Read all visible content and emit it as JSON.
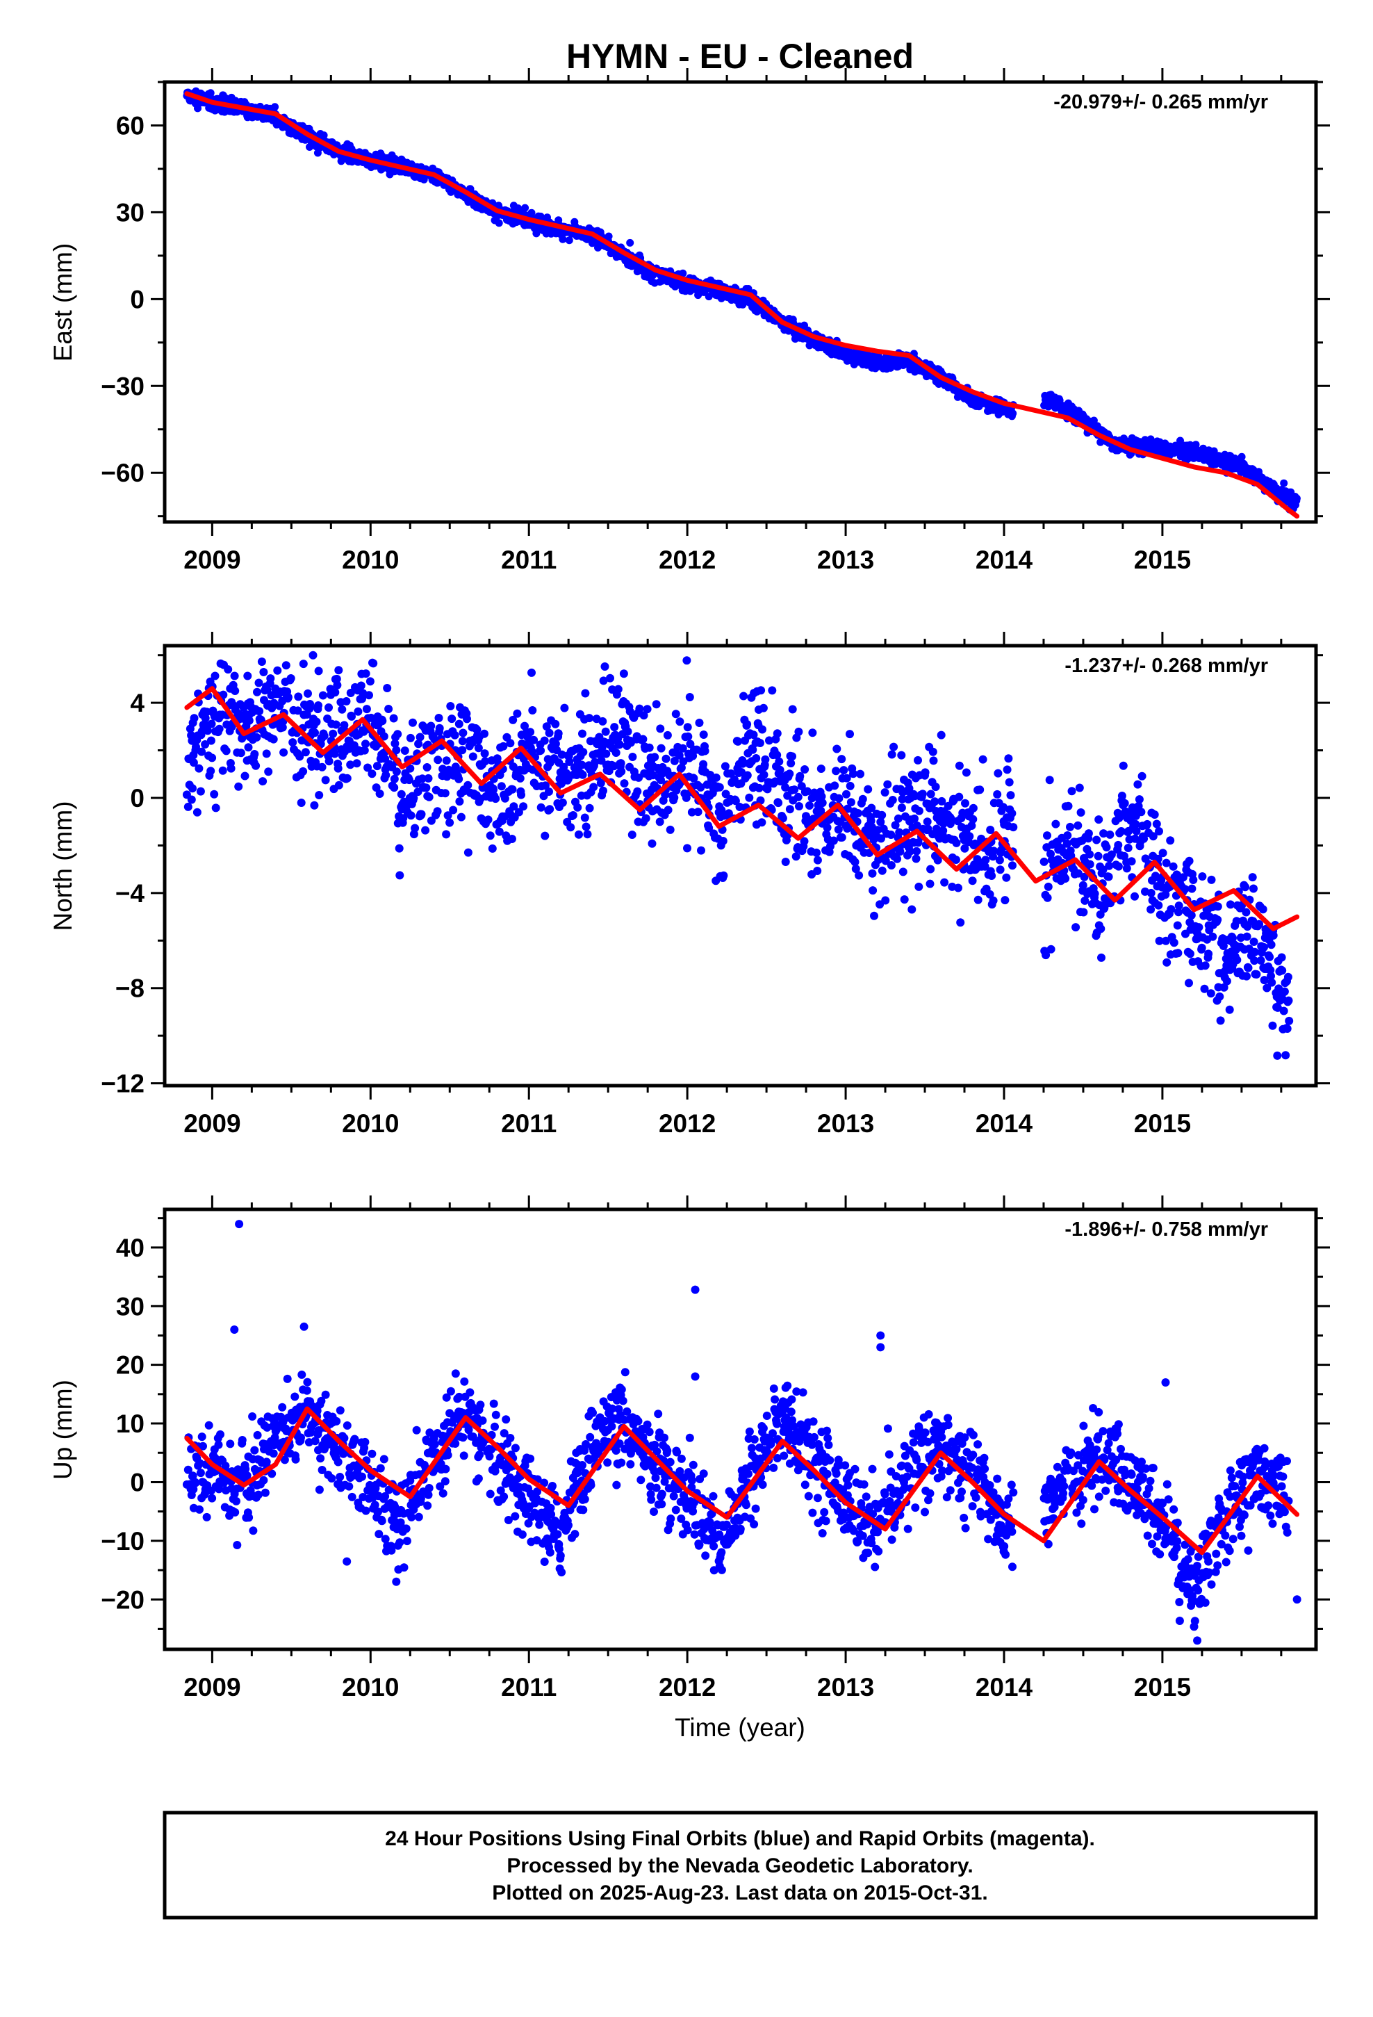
{
  "title": "HYMN  - EU - Cleaned",
  "xlabel": "Time (year)",
  "footer": {
    "line1": "24 Hour Positions Using Final Orbits (blue) and Rapid Orbits (magenta).",
    "line2": "Processed by the Nevada Geodetic Laboratory.",
    "line3": "Plotted on 2025-Aug-23. Last data on 2015-Oct-31."
  },
  "colors": {
    "points": "#0000ff",
    "fit": "#ff0000",
    "frame": "#000000"
  },
  "chart_data": [
    {
      "type": "scatter",
      "ylabel": "East (mm)",
      "rate_label": "-20.979+/- 0.265 mm/yr",
      "xlim": [
        2008.7,
        2015.97
      ],
      "ylim": [
        -77,
        75
      ],
      "xticks": [
        "2009",
        "2010",
        "2011",
        "2012",
        "2013",
        "2014",
        "2015"
      ],
      "yticks": [
        "60",
        "30",
        "0",
        "−30",
        "−60"
      ],
      "ytick_values": [
        60,
        30,
        0,
        -30,
        -60
      ],
      "series": [
        {
          "role": "observations",
          "x": [
            2008.84,
            2009.0,
            2009.2,
            2009.4,
            2009.6,
            2009.8,
            2010.0,
            2010.2,
            2010.4,
            2010.6,
            2010.8,
            2011.0,
            2011.2,
            2011.4,
            2011.6,
            2011.8,
            2012.0,
            2012.2,
            2012.4,
            2012.6,
            2012.8,
            2013.0,
            2013.2,
            2013.4,
            2013.6,
            2013.8,
            2014.0,
            2014.1,
            2014.3,
            2014.5,
            2014.7,
            2014.9,
            2015.1,
            2015.3,
            2015.5,
            2015.7,
            2015.85
          ],
          "y": [
            70,
            68,
            66,
            63,
            56,
            51,
            48,
            46,
            43,
            36,
            30,
            27,
            24,
            22,
            15,
            9,
            5,
            3,
            0,
            -8,
            -14,
            -19,
            -22,
            -21,
            -27,
            -35,
            -38,
            -40,
            -35,
            -42,
            -50,
            -51,
            -52,
            -54,
            -58,
            -66,
            -71
          ]
        },
        {
          "role": "model",
          "x": [
            2008.84,
            2009.0,
            2009.2,
            2009.4,
            2009.6,
            2009.8,
            2010.0,
            2010.2,
            2010.4,
            2010.6,
            2010.8,
            2011.0,
            2011.2,
            2011.4,
            2011.6,
            2011.8,
            2012.0,
            2012.2,
            2012.4,
            2012.6,
            2012.8,
            2013.0,
            2013.2,
            2013.4,
            2013.6,
            2013.8,
            2014.0,
            2014.2,
            2014.4,
            2014.6,
            2014.8,
            2015.0,
            2015.2,
            2015.4,
            2015.6,
            2015.8,
            2015.85
          ],
          "y": [
            71,
            68,
            66,
            64,
            57,
            51,
            48,
            45.5,
            43,
            37,
            30.5,
            27.5,
            25,
            22.5,
            16,
            10,
            6.5,
            4,
            1.5,
            -8,
            -13,
            -16,
            -18,
            -19.5,
            -27,
            -32,
            -36,
            -38.5,
            -41,
            -47,
            -52,
            -55,
            -58,
            -60,
            -64,
            -73,
            -75
          ]
        }
      ]
    },
    {
      "type": "scatter",
      "ylabel": "North (mm)",
      "rate_label": "-1.237+/- 0.268 mm/yr",
      "xlim": [
        2008.7,
        2015.97
      ],
      "ylim": [
        -12.1,
        6.4
      ],
      "xticks": [
        "2009",
        "2010",
        "2011",
        "2012",
        "2013",
        "2014",
        "2015"
      ],
      "yticks": [
        "4",
        "0",
        "−4",
        "−8",
        "−12"
      ],
      "ytick_values": [
        4,
        0,
        -4,
        -8,
        -12
      ],
      "series": [
        {
          "role": "observations",
          "x": [
            2008.84,
            2009.0,
            2009.2,
            2009.4,
            2009.6,
            2009.8,
            2010.0,
            2010.2,
            2010.4,
            2010.6,
            2010.8,
            2011.0,
            2011.2,
            2011.4,
            2011.6,
            2011.8,
            2012.0,
            2012.2,
            2012.4,
            2012.6,
            2012.8,
            2013.0,
            2013.2,
            2013.4,
            2013.6,
            2013.8,
            2014.0,
            2014.2,
            2014.4,
            2014.6,
            2014.8,
            2015.0,
            2015.2,
            2015.4,
            2015.6,
            2015.8
          ],
          "y": [
            1.3,
            3.5,
            3,
            3.8,
            3,
            2.5,
            3.5,
            0.5,
            1.5,
            1.8,
            0,
            2,
            1,
            1.5,
            2.5,
            0.5,
            1.5,
            -1,
            2,
            0.5,
            -1.5,
            0,
            -2,
            -1,
            -1,
            -2.5,
            -1,
            -3.5,
            -2,
            -4.5,
            -1,
            -4,
            -5,
            -7,
            -5,
            -9
          ]
        },
        {
          "role": "model",
          "x": [
            2008.84,
            2009.0,
            2009.2,
            2009.45,
            2009.7,
            2009.95,
            2010.2,
            2010.45,
            2010.7,
            2010.95,
            2011.2,
            2011.45,
            2011.7,
            2011.95,
            2012.2,
            2012.45,
            2012.7,
            2012.95,
            2013.2,
            2013.45,
            2013.7,
            2013.95,
            2014.2,
            2014.45,
            2014.7,
            2014.95,
            2015.2,
            2015.45,
            2015.7,
            2015.85
          ],
          "y": [
            3.8,
            4.6,
            2.7,
            3.5,
            1.9,
            3.3,
            1.3,
            2.4,
            0.6,
            2.1,
            0.2,
            1.0,
            -0.5,
            1.0,
            -1.2,
            -0.3,
            -1.7,
            -0.3,
            -2.4,
            -1.4,
            -3.0,
            -1.5,
            -3.5,
            -2.6,
            -4.3,
            -2.7,
            -4.7,
            -3.9,
            -5.5,
            -5.0
          ]
        }
      ]
    },
    {
      "type": "scatter",
      "ylabel": "Up (mm)",
      "rate_label": "-1.896+/- 0.758 mm/yr",
      "xlim": [
        2008.7,
        2015.97
      ],
      "ylim": [
        -28.5,
        46.5
      ],
      "xticks": [
        "2009",
        "2010",
        "2011",
        "2012",
        "2013",
        "2014",
        "2015"
      ],
      "yticks": [
        "40",
        "30",
        "20",
        "10",
        "0",
        "−10",
        "−20"
      ],
      "ytick_values": [
        40,
        30,
        20,
        10,
        0,
        -10,
        -20
      ],
      "series": [
        {
          "role": "observations",
          "x": [
            2008.84,
            2009.0,
            2009.2,
            2009.4,
            2009.6,
            2009.8,
            2010.0,
            2010.2,
            2010.4,
            2010.6,
            2010.8,
            2011.0,
            2011.2,
            2011.4,
            2011.6,
            2011.8,
            2012.0,
            2012.2,
            2012.4,
            2012.6,
            2012.8,
            2013.0,
            2013.2,
            2013.4,
            2013.6,
            2013.8,
            2014.0,
            2014.2,
            2014.4,
            2014.6,
            2014.8,
            2015.0,
            2015.2,
            2015.4,
            2015.6,
            2015.8
          ],
          "y": [
            0.5,
            3,
            -2,
            8,
            12,
            5,
            0,
            -8,
            5,
            12,
            2,
            -3,
            -9,
            6,
            10,
            3,
            -2,
            -10,
            0,
            11,
            4,
            -3,
            -8,
            2,
            6,
            2,
            -7,
            -6,
            0,
            5,
            0,
            -6,
            -18,
            -5,
            1,
            -2
          ]
        },
        {
          "role": "model",
          "x": [
            2008.84,
            2009.0,
            2009.2,
            2009.4,
            2009.6,
            2009.8,
            2010.0,
            2010.25,
            2010.6,
            2010.8,
            2011.0,
            2011.25,
            2011.6,
            2011.8,
            2012.0,
            2012.25,
            2012.6,
            2012.8,
            2013.0,
            2013.25,
            2013.6,
            2013.8,
            2014.0,
            2014.25,
            2014.6,
            2014.8,
            2015.0,
            2015.25,
            2015.6,
            2015.85
          ],
          "y": [
            7.5,
            3,
            -0.5,
            3,
            12.5,
            7,
            2,
            -2.5,
            11,
            6,
            0.5,
            -4,
            9.5,
            4,
            -1.5,
            -6,
            7,
            2,
            -3.5,
            -8,
            5,
            0,
            -5.5,
            -10,
            3.5,
            -1.5,
            -6,
            -12,
            1,
            -5.5
          ]
        },
        {
          "role": "outliers",
          "x": [
            2009.17,
            2009.14,
            2009.58,
            2012.05,
            2012.05,
            2013.22,
            2013.22,
            2015.02,
            2015.22,
            2015.85
          ],
          "y": [
            44,
            26,
            26.5,
            32.8,
            18,
            25,
            23,
            17,
            -27,
            -20
          ]
        }
      ]
    }
  ]
}
